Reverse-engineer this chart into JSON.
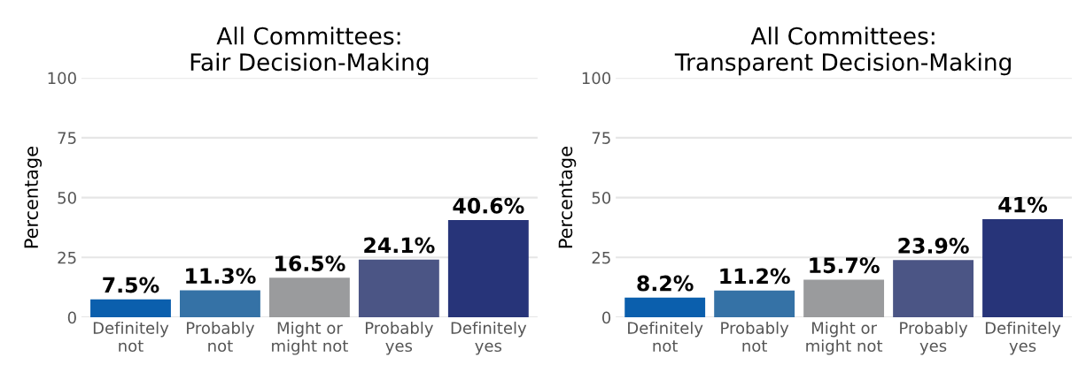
{
  "chart_data": [
    {
      "type": "bar",
      "title": "All Committees:\nFair Decision-Making",
      "ylabel": "Percentage",
      "categories": [
        "Definitely\nnot",
        "Probably\nnot",
        "Might or\nmight not",
        "Probably\nyes",
        "Definitely\nyes"
      ],
      "values": [
        7.5,
        11.3,
        16.5,
        24.1,
        40.6
      ],
      "value_labels": [
        "7.5%",
        "11.3%",
        "16.5%",
        "24.1%",
        "40.6%"
      ],
      "colors": [
        "#0b5fad",
        "#3572a6",
        "#9a9b9d",
        "#4b5585",
        "#273479"
      ],
      "ylim": [
        0,
        100
      ],
      "yticks": [
        0,
        25,
        50,
        75,
        100
      ],
      "grid": "y"
    },
    {
      "type": "bar",
      "title": "All Committees:\nTransparent Decision-Making",
      "ylabel": "Percentage",
      "categories": [
        "Definitely\nnot",
        "Probably\nnot",
        "Might or\nmight not",
        "Probably\nyes",
        "Definitely\nyes"
      ],
      "values": [
        8.2,
        11.2,
        15.7,
        23.9,
        41
      ],
      "value_labels": [
        "8.2%",
        "11.2%",
        "15.7%",
        "23.9%",
        "41%"
      ],
      "colors": [
        "#0b5fad",
        "#3572a6",
        "#9a9b9d",
        "#4b5585",
        "#273479"
      ],
      "ylim": [
        0,
        100
      ],
      "yticks": [
        0,
        25,
        50,
        75,
        100
      ],
      "grid": "y"
    }
  ]
}
